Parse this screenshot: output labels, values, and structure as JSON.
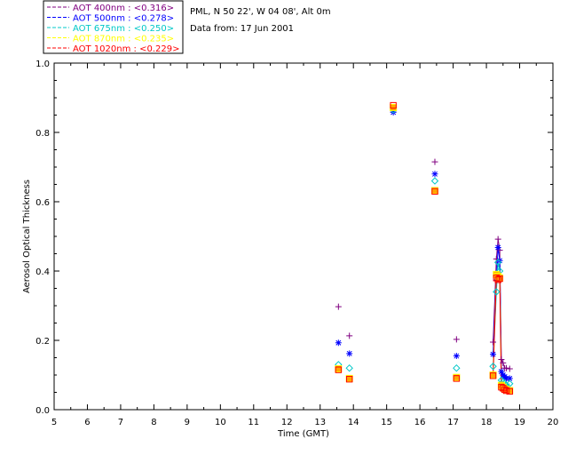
{
  "chart_data": {
    "type": "scatter",
    "title": "",
    "info_lines": [
      "PML, N 50 22', W 04 08', Alt 0m",
      "Data from: 17 Jun 2001"
    ],
    "xlabel": "Time (GMT)",
    "ylabel": "Aerosol Optical Thickness",
    "xlim": [
      5,
      20
    ],
    "ylim": [
      0,
      1.0
    ],
    "x_ticks": [
      "5",
      "6",
      "7",
      "8",
      "9",
      "10",
      "11",
      "12",
      "13",
      "14",
      "15",
      "16",
      "17",
      "18",
      "19",
      "20"
    ],
    "y_ticks": [
      "0.0",
      "0.2",
      "0.4",
      "0.6",
      "0.8",
      "1.0"
    ],
    "legend_position": "top-left",
    "series": [
      {
        "name": "AOT  400nm : <0.316>",
        "color": "#800080",
        "marker": "plus",
        "x": [
          13.55,
          13.88,
          15.2,
          16.45,
          17.1,
          18.2,
          18.3,
          18.35,
          18.4,
          18.45,
          18.5,
          18.55,
          18.6,
          18.7
        ],
        "y": [
          0.297,
          0.213,
          0.862,
          0.715,
          0.203,
          0.195,
          0.435,
          0.492,
          0.46,
          0.145,
          0.135,
          0.12,
          0.12,
          0.118
        ]
      },
      {
        "name": "AOT  500nm : <0.278>",
        "color": "#0000ff",
        "marker": "asterisk",
        "x": [
          13.55,
          13.88,
          15.2,
          16.45,
          17.1,
          18.2,
          18.3,
          18.35,
          18.4,
          18.45,
          18.5,
          18.55,
          18.6,
          18.7
        ],
        "y": [
          0.193,
          0.162,
          0.858,
          0.68,
          0.155,
          0.16,
          0.38,
          0.468,
          0.43,
          0.11,
          0.1,
          0.095,
          0.09,
          0.09
        ]
      },
      {
        "name": "AOT  675nm : <0.250>",
        "color": "#00c8c8",
        "marker": "diamond",
        "x": [
          13.55,
          13.88,
          15.2,
          16.45,
          17.1,
          18.2,
          18.3,
          18.35,
          18.4,
          18.45,
          18.5,
          18.55,
          18.6,
          18.7
        ],
        "y": [
          0.13,
          0.12,
          0.865,
          0.66,
          0.12,
          0.125,
          0.34,
          0.425,
          0.4,
          0.085,
          0.08,
          0.075,
          0.07,
          0.075
        ]
      },
      {
        "name": "AOT  870nm : <0.235>",
        "color": "#ffff00",
        "marker": "square",
        "x": [
          13.55,
          13.88,
          15.2,
          16.45,
          17.1,
          18.2,
          18.3,
          18.35,
          18.4,
          18.45,
          18.5,
          18.55,
          18.6,
          18.7
        ],
        "y": [
          0.118,
          0.09,
          0.872,
          0.632,
          0.093,
          0.1,
          0.39,
          0.385,
          0.38,
          0.07,
          0.065,
          0.06,
          0.058,
          0.055
        ]
      },
      {
        "name": "AOT 1020nm : <0.229>",
        "color": "#ff0000",
        "marker": "square",
        "x": [
          13.55,
          13.88,
          15.2,
          16.45,
          17.1,
          18.2,
          18.3,
          18.35,
          18.4,
          18.45,
          18.5,
          18.55,
          18.6,
          18.7
        ],
        "y": [
          0.115,
          0.088,
          0.878,
          0.63,
          0.09,
          0.098,
          0.38,
          0.375,
          0.378,
          0.065,
          0.062,
          0.058,
          0.055,
          0.053
        ]
      }
    ]
  }
}
